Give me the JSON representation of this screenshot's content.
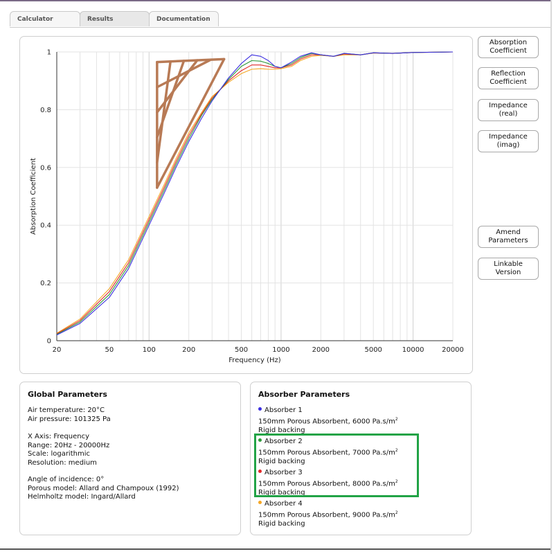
{
  "tabs": [
    {
      "label": "Calculator"
    },
    {
      "label": "Results"
    },
    {
      "label": "Documentation"
    }
  ],
  "side_buttons": [
    {
      "line1": "Absorption",
      "line2": "Coefficient"
    },
    {
      "line1": "Reflection",
      "line2": "Coefficient"
    },
    {
      "line1": "Impedance",
      "line2": "(real)"
    },
    {
      "line1": "Impedance",
      "line2": "(imag)"
    },
    {
      "line1": "Amend",
      "line2": "Parameters"
    },
    {
      "line1": "Linkable",
      "line2": "Version"
    }
  ],
  "global_parameters": {
    "title": "Global Parameters",
    "air_temperature": "Air temperature: 20°C",
    "air_pressure": "Air pressure: 101325 Pa",
    "x_axis": "X Axis: Frequency",
    "range": "Range: 20Hz - 20000Hz",
    "scale": "Scale: logarithmic",
    "resolution": "Resolution: medium",
    "angle": "Angle of incidence: 0°",
    "porous_model": "Porous model: Allard and Champoux (1992)",
    "helmholtz_model": "Helmholtz model: Ingard/Allard"
  },
  "absorber_parameters": {
    "title": "Absorber Parameters",
    "items": [
      {
        "name": "Absorber 1",
        "desc": "150mm Porous Absorbent, 6000 Pa.s/m",
        "sup": "2",
        "backing": "Rigid backing",
        "color": "#3b2ee0"
      },
      {
        "name": "Absorber 2",
        "desc": "150mm Porous Absorbent, 7000 Pa.s/m",
        "sup": "2",
        "backing": "Rigid backing",
        "color": "#2e9a3a"
      },
      {
        "name": "Absorber 3",
        "desc": "150mm Porous Absorbent, 8000 Pa.s/m",
        "sup": "2",
        "backing": "Rigid backing",
        "color": "#e02828"
      },
      {
        "name": "Absorber 4",
        "desc": "150mm Porous Absorbent, 9000 Pa.s/m",
        "sup": "2",
        "backing": "Rigid backing",
        "color": "#f5a623"
      }
    ]
  },
  "chart_data": {
    "type": "line",
    "xlabel": "Frequency (Hz)",
    "ylabel": "Absorption Coefficient",
    "xscale": "log",
    "xlim": [
      20,
      20000
    ],
    "ylim": [
      0,
      1
    ],
    "grid": true,
    "x_ticks": [
      20,
      50,
      100,
      200,
      500,
      1000,
      2000,
      5000,
      10000,
      20000
    ],
    "y_ticks": [
      0,
      0.2,
      0.4,
      0.6,
      0.8,
      1
    ],
    "y_tick_labels": [
      "0",
      "0.2",
      "0.4",
      "0.6",
      "0.8",
      "1"
    ],
    "series": [
      {
        "name": "Absorber 1",
        "color": "#3b2ee0",
        "x": [
          20,
          30,
          50,
          70,
          100,
          130,
          160,
          200,
          250,
          300,
          400,
          500,
          600,
          700,
          800,
          900,
          1000,
          1200,
          1400,
          1700,
          2000,
          2500,
          3000,
          4000,
          5000,
          7000,
          10000,
          20000
        ],
        "y": [
          0.02,
          0.06,
          0.15,
          0.25,
          0.4,
          0.51,
          0.6,
          0.69,
          0.77,
          0.83,
          0.91,
          0.96,
          0.99,
          0.985,
          0.97,
          0.95,
          0.945,
          0.965,
          0.985,
          0.997,
          0.99,
          0.985,
          0.995,
          0.99,
          0.997,
          0.995,
          0.998,
          1.0
        ]
      },
      {
        "name": "Absorber 2",
        "color": "#2e9a3a",
        "x": [
          20,
          30,
          50,
          70,
          100,
          130,
          160,
          200,
          250,
          300,
          400,
          500,
          600,
          700,
          800,
          900,
          1000,
          1200,
          1400,
          1700,
          2000,
          2500,
          3000,
          4000,
          5000,
          7000,
          10000,
          20000
        ],
        "y": [
          0.022,
          0.065,
          0.16,
          0.26,
          0.41,
          0.52,
          0.61,
          0.7,
          0.78,
          0.835,
          0.905,
          0.95,
          0.97,
          0.968,
          0.96,
          0.95,
          0.945,
          0.96,
          0.98,
          0.995,
          0.99,
          0.985,
          0.995,
          0.99,
          0.997,
          0.995,
          0.998,
          1.0
        ]
      },
      {
        "name": "Absorber 3",
        "color": "#e02828",
        "x": [
          20,
          30,
          50,
          70,
          100,
          130,
          160,
          200,
          250,
          300,
          400,
          500,
          600,
          700,
          800,
          900,
          1000,
          1200,
          1400,
          1700,
          2000,
          2500,
          3000,
          4000,
          5000,
          7000,
          10000,
          20000
        ],
        "y": [
          0.024,
          0.07,
          0.17,
          0.27,
          0.42,
          0.53,
          0.62,
          0.71,
          0.785,
          0.84,
          0.9,
          0.935,
          0.955,
          0.955,
          0.95,
          0.945,
          0.945,
          0.955,
          0.975,
          0.99,
          0.99,
          0.985,
          0.993,
          0.99,
          0.997,
          0.995,
          0.998,
          1.0
        ]
      },
      {
        "name": "Absorber 4",
        "color": "#f5a623",
        "x": [
          20,
          30,
          50,
          70,
          100,
          130,
          160,
          200,
          250,
          300,
          400,
          500,
          600,
          700,
          800,
          900,
          1000,
          1200,
          1400,
          1700,
          2000,
          2500,
          3000,
          4000,
          5000,
          7000,
          10000,
          20000
        ],
        "y": [
          0.026,
          0.075,
          0.18,
          0.28,
          0.43,
          0.54,
          0.63,
          0.72,
          0.79,
          0.845,
          0.895,
          0.925,
          0.94,
          0.942,
          0.94,
          0.94,
          0.942,
          0.95,
          0.97,
          0.985,
          0.988,
          0.985,
          0.99,
          0.99,
          0.996,
          0.995,
          0.998,
          1.0
        ]
      }
    ],
    "annotation": {
      "type": "hand-drawn hatched triangle",
      "color": "#b87a55",
      "vertices": [
        [
          115,
          0.53
        ],
        [
          115,
          0.965
        ],
        [
          370,
          0.975
        ]
      ]
    }
  }
}
